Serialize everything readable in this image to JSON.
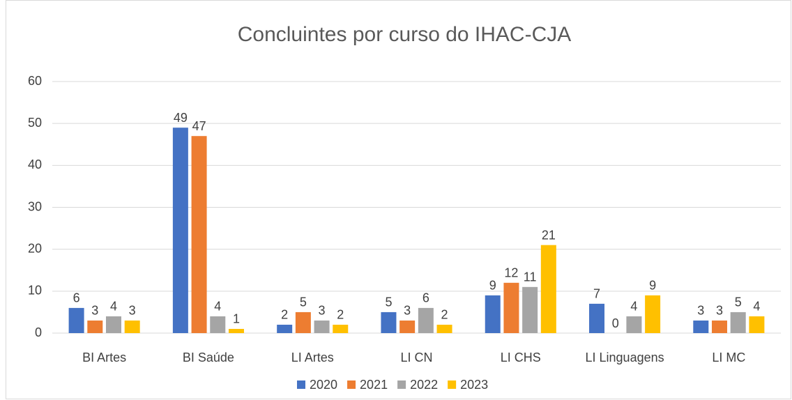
{
  "chart_data": {
    "type": "bar",
    "title": "Concluintes por curso do IHAC-CJA",
    "categories": [
      "BI Artes",
      "BI Saúde",
      "LI Artes",
      "LI CN",
      "LI CHS",
      "LI Linguagens",
      "LI MC"
    ],
    "series": [
      {
        "name": "2020",
        "color": "#4472c4",
        "values": [
          6,
          49,
          2,
          5,
          9,
          7,
          3
        ]
      },
      {
        "name": "2021",
        "color": "#ed7d31",
        "values": [
          3,
          47,
          5,
          3,
          12,
          0,
          3
        ]
      },
      {
        "name": "2022",
        "color": "#a5a5a5",
        "values": [
          4,
          4,
          3,
          6,
          11,
          4,
          5
        ]
      },
      {
        "name": "2023",
        "color": "#ffc000",
        "values": [
          3,
          1,
          2,
          2,
          21,
          9,
          4
        ]
      }
    ],
    "ylim": [
      0,
      60
    ],
    "yticks": [
      0,
      10,
      20,
      30,
      40,
      50,
      60
    ],
    "grid": true,
    "legend": "bottom"
  }
}
